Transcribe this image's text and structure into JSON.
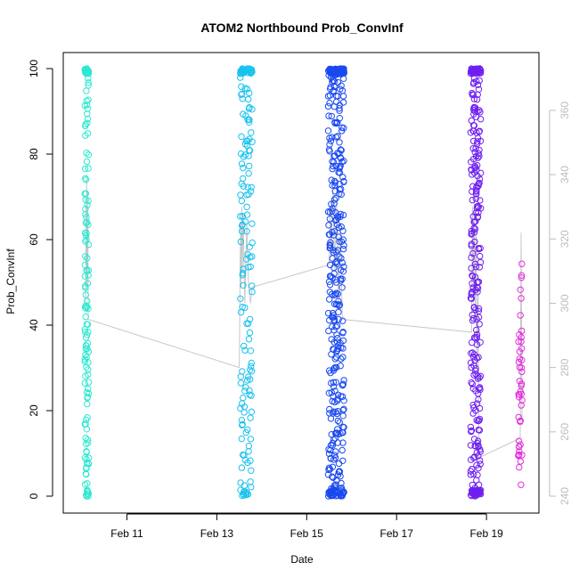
{
  "chart_data": {
    "type": "scatter",
    "title": "ATOM2 Northbound Prob_ConvInf",
    "xlabel": "Date",
    "ylabel": "Prob_ConvInf",
    "x_ticks": [
      {
        "date": "2021-02-11",
        "label": "Feb 11"
      },
      {
        "date": "2021-02-13",
        "label": "Feb 13"
      },
      {
        "date": "2021-02-15",
        "label": "Feb 15"
      },
      {
        "date": "2021-02-17",
        "label": "Feb 17"
      },
      {
        "date": "2021-02-19",
        "label": "Feb 19"
      }
    ],
    "xlim": [
      "2021-02-09T14:00",
      "2021-02-20T04:00"
    ],
    "ylim": [
      0,
      100
    ],
    "y_ticks": [
      0,
      20,
      40,
      60,
      80,
      100
    ],
    "y2_ticks": [
      240,
      260,
      280,
      300,
      320,
      340,
      360
    ],
    "y2lim": [
      240,
      373
    ],
    "y2_color": "#bdbdbd",
    "grid": false,
    "point_style": "open circles colored by time (cyan to magenta)",
    "gray_line": [
      {
        "x": "2021-02-10T02:00",
        "y": 300
      },
      {
        "x": "2021-02-10T02:10",
        "y": 330
      },
      {
        "x": "2021-02-10T02:20",
        "y": 310
      },
      {
        "x": "2021-02-10T02:30",
        "y": 340
      },
      {
        "x": "2021-02-10T02:40",
        "y": 305
      },
      {
        "x": "2021-02-10T02:50",
        "y": 335
      },
      {
        "x": "2021-02-10T03:00",
        "y": 315
      },
      {
        "x": "2021-02-10T03:10",
        "y": 325
      },
      {
        "x": "2021-02-10T03:20",
        "y": 295
      },
      {
        "x": "2021-02-13T12:00",
        "y": 280
      },
      {
        "x": "2021-02-13T12:20",
        "y": 300
      },
      {
        "x": "2021-02-13T12:40",
        "y": 325
      },
      {
        "x": "2021-02-13T13:00",
        "y": 305
      },
      {
        "x": "2021-02-13T13:20",
        "y": 330
      },
      {
        "x": "2021-02-13T13:40",
        "y": 310
      },
      {
        "x": "2021-02-13T14:00",
        "y": 328
      },
      {
        "x": "2021-02-13T15:00",
        "y": 300
      },
      {
        "x": "2021-02-13T16:00",
        "y": 325
      },
      {
        "x": "2021-02-13T17:00",
        "y": 305
      },
      {
        "x": "2021-02-13T18:00",
        "y": 300
      },
      {
        "x": "2021-02-13T19:00",
        "y": 305
      },
      {
        "x": "2021-02-15T12:00",
        "y": 312
      },
      {
        "x": "2021-02-15T12:30",
        "y": 330
      },
      {
        "x": "2021-02-15T13:00",
        "y": 315
      },
      {
        "x": "2021-02-15T14:00",
        "y": 335
      },
      {
        "x": "2021-02-15T15:00",
        "y": 310
      },
      {
        "x": "2021-02-15T16:00",
        "y": 332
      },
      {
        "x": "2021-02-15T17:00",
        "y": 300
      },
      {
        "x": "2021-02-15T18:00",
        "y": 325
      },
      {
        "x": "2021-02-15T19:00",
        "y": 295
      },
      {
        "x": "2021-02-18T16:00",
        "y": 291
      },
      {
        "x": "2021-02-18T16:30",
        "y": 330
      },
      {
        "x": "2021-02-18T17:00",
        "y": 300
      },
      {
        "x": "2021-02-18T17:30",
        "y": 335
      },
      {
        "x": "2021-02-18T18:00",
        "y": 295
      },
      {
        "x": "2021-02-18T18:30",
        "y": 325
      },
      {
        "x": "2021-02-18T19:00",
        "y": 280
      },
      {
        "x": "2021-02-18T19:30",
        "y": 305
      },
      {
        "x": "2021-02-18T20:00",
        "y": 252
      },
      {
        "x": "2021-02-19T18:00",
        "y": 258
      },
      {
        "x": "2021-02-19T18:30",
        "y": 322
      },
      {
        "x": "2021-02-19T19:00",
        "y": 262
      }
    ],
    "clusters": [
      {
        "start": "2021-02-10T01:30",
        "end": "2021-02-10T03:40",
        "color": "#2de8d1"
      },
      {
        "start": "2021-02-13T12:30",
        "end": "2021-02-13T19:00",
        "color": "#19c2ee"
      },
      {
        "start": "2021-02-15T11:30",
        "end": "2021-02-15T20:00",
        "color": "#1a49ef"
      },
      {
        "start": "2021-02-18T15:30",
        "end": "2021-02-18T21:00",
        "color": "#6f1ff0"
      },
      {
        "start": "2021-02-19T17:00",
        "end": "2021-02-19T19:00",
        "color": "#e22ddb"
      }
    ]
  }
}
